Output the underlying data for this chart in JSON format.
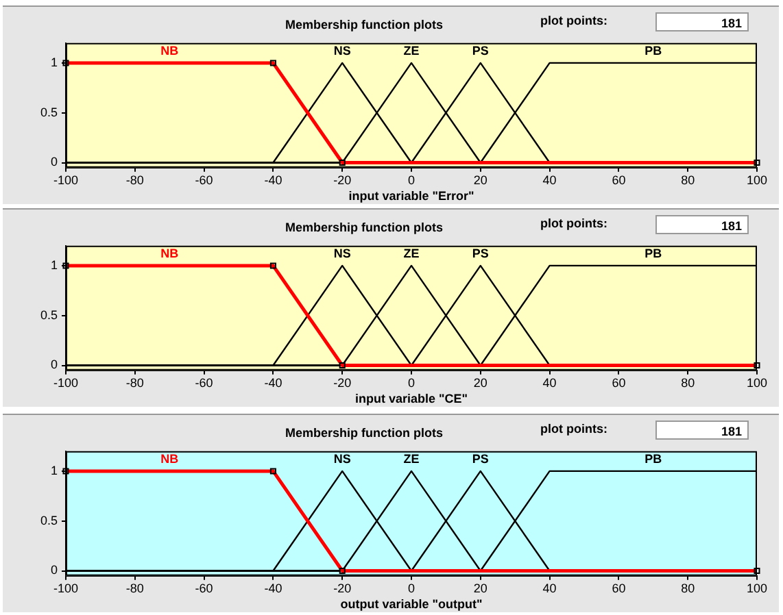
{
  "chart_data": [
    {
      "type": "line",
      "title": "Membership function plots",
      "xlabel": "input variable \"Error\"",
      "annotations": [
        "plot points:",
        "181"
      ],
      "xlim": [
        -100,
        100
      ],
      "xticks": [
        -100,
        -80,
        -60,
        -40,
        -20,
        0,
        20,
        40,
        60,
        80,
        100
      ],
      "ylim": [
        -0.05,
        1.2
      ],
      "yticks": [
        0,
        0.5,
        1
      ],
      "grid": false,
      "legend": false,
      "series": [
        {
          "name": "NB",
          "color": "#ff0000",
          "marker": "square",
          "x": [
            -100,
            -40,
            -20,
            100
          ],
          "values": [
            1,
            1,
            0,
            0
          ]
        },
        {
          "name": "NS",
          "color": "#000000",
          "marker": "none",
          "x": [
            -100,
            -40,
            -20,
            0,
            100
          ],
          "values": [
            0,
            0,
            1,
            0,
            0
          ]
        },
        {
          "name": "ZE",
          "color": "#000000",
          "marker": "none",
          "x": [
            -100,
            -20,
            0,
            20,
            100
          ],
          "values": [
            0,
            0,
            1,
            0,
            0
          ]
        },
        {
          "name": "PS",
          "color": "#000000",
          "marker": "none",
          "x": [
            -100,
            0,
            20,
            40,
            100
          ],
          "values": [
            0,
            0,
            1,
            0,
            0
          ]
        },
        {
          "name": "PB",
          "color": "#000000",
          "marker": "none",
          "x": [
            -100,
            20,
            40,
            100
          ],
          "values": [
            0,
            0,
            1,
            1
          ]
        }
      ]
    },
    {
      "type": "line",
      "title": "Membership function plots",
      "xlabel": "input variable \"CE\"",
      "annotations": [
        "plot points:",
        "181"
      ],
      "xlim": [
        -100,
        100
      ],
      "xticks": [
        -100,
        -80,
        -60,
        -40,
        -20,
        0,
        20,
        40,
        60,
        80,
        100
      ],
      "ylim": [
        -0.05,
        1.2
      ],
      "yticks": [
        0,
        0.5,
        1
      ],
      "grid": false,
      "legend": false,
      "series": [
        {
          "name": "NB",
          "color": "#ff0000",
          "marker": "square",
          "x": [
            -100,
            -40,
            -20,
            100
          ],
          "values": [
            1,
            1,
            0,
            0
          ]
        },
        {
          "name": "NS",
          "color": "#000000",
          "marker": "none",
          "x": [
            -100,
            -40,
            -20,
            0,
            100
          ],
          "values": [
            0,
            0,
            1,
            0,
            0
          ]
        },
        {
          "name": "ZE",
          "color": "#000000",
          "marker": "none",
          "x": [
            -100,
            -20,
            0,
            20,
            100
          ],
          "values": [
            0,
            0,
            1,
            0,
            0
          ]
        },
        {
          "name": "PS",
          "color": "#000000",
          "marker": "none",
          "x": [
            -100,
            0,
            20,
            40,
            100
          ],
          "values": [
            0,
            0,
            1,
            0,
            0
          ]
        },
        {
          "name": "PB",
          "color": "#000000",
          "marker": "none",
          "x": [
            -100,
            20,
            40,
            100
          ],
          "values": [
            0,
            0,
            1,
            1
          ]
        }
      ]
    },
    {
      "type": "line",
      "title": "Membership function plots",
      "xlabel": "output variable \"output\"",
      "annotations": [
        "plot points:",
        "181"
      ],
      "xlim": [
        -100,
        100
      ],
      "xticks": [
        -100,
        -80,
        -60,
        -40,
        -20,
        0,
        20,
        40,
        60,
        80,
        100
      ],
      "ylim": [
        -0.05,
        1.2
      ],
      "yticks": [
        0,
        0.5,
        1
      ],
      "grid": false,
      "legend": false,
      "series": [
        {
          "name": "NB",
          "color": "#ff0000",
          "marker": "square",
          "x": [
            -100,
            -40,
            -20,
            100
          ],
          "values": [
            1,
            1,
            0,
            0
          ]
        },
        {
          "name": "NS",
          "color": "#000000",
          "marker": "none",
          "x": [
            -100,
            -40,
            -20,
            0,
            100
          ],
          "values": [
            0,
            0,
            1,
            0,
            0
          ]
        },
        {
          "name": "ZE",
          "color": "#000000",
          "marker": "none",
          "x": [
            -100,
            -20,
            0,
            20,
            100
          ],
          "values": [
            0,
            0,
            1,
            0,
            0
          ]
        },
        {
          "name": "PS",
          "color": "#000000",
          "marker": "none",
          "x": [
            -100,
            0,
            20,
            40,
            100
          ],
          "values": [
            0,
            0,
            1,
            0,
            0
          ]
        },
        {
          "name": "PB",
          "color": "#000000",
          "marker": "none",
          "x": [
            -100,
            20,
            40,
            100
          ],
          "values": [
            0,
            0,
            1,
            1
          ]
        }
      ]
    }
  ]
}
